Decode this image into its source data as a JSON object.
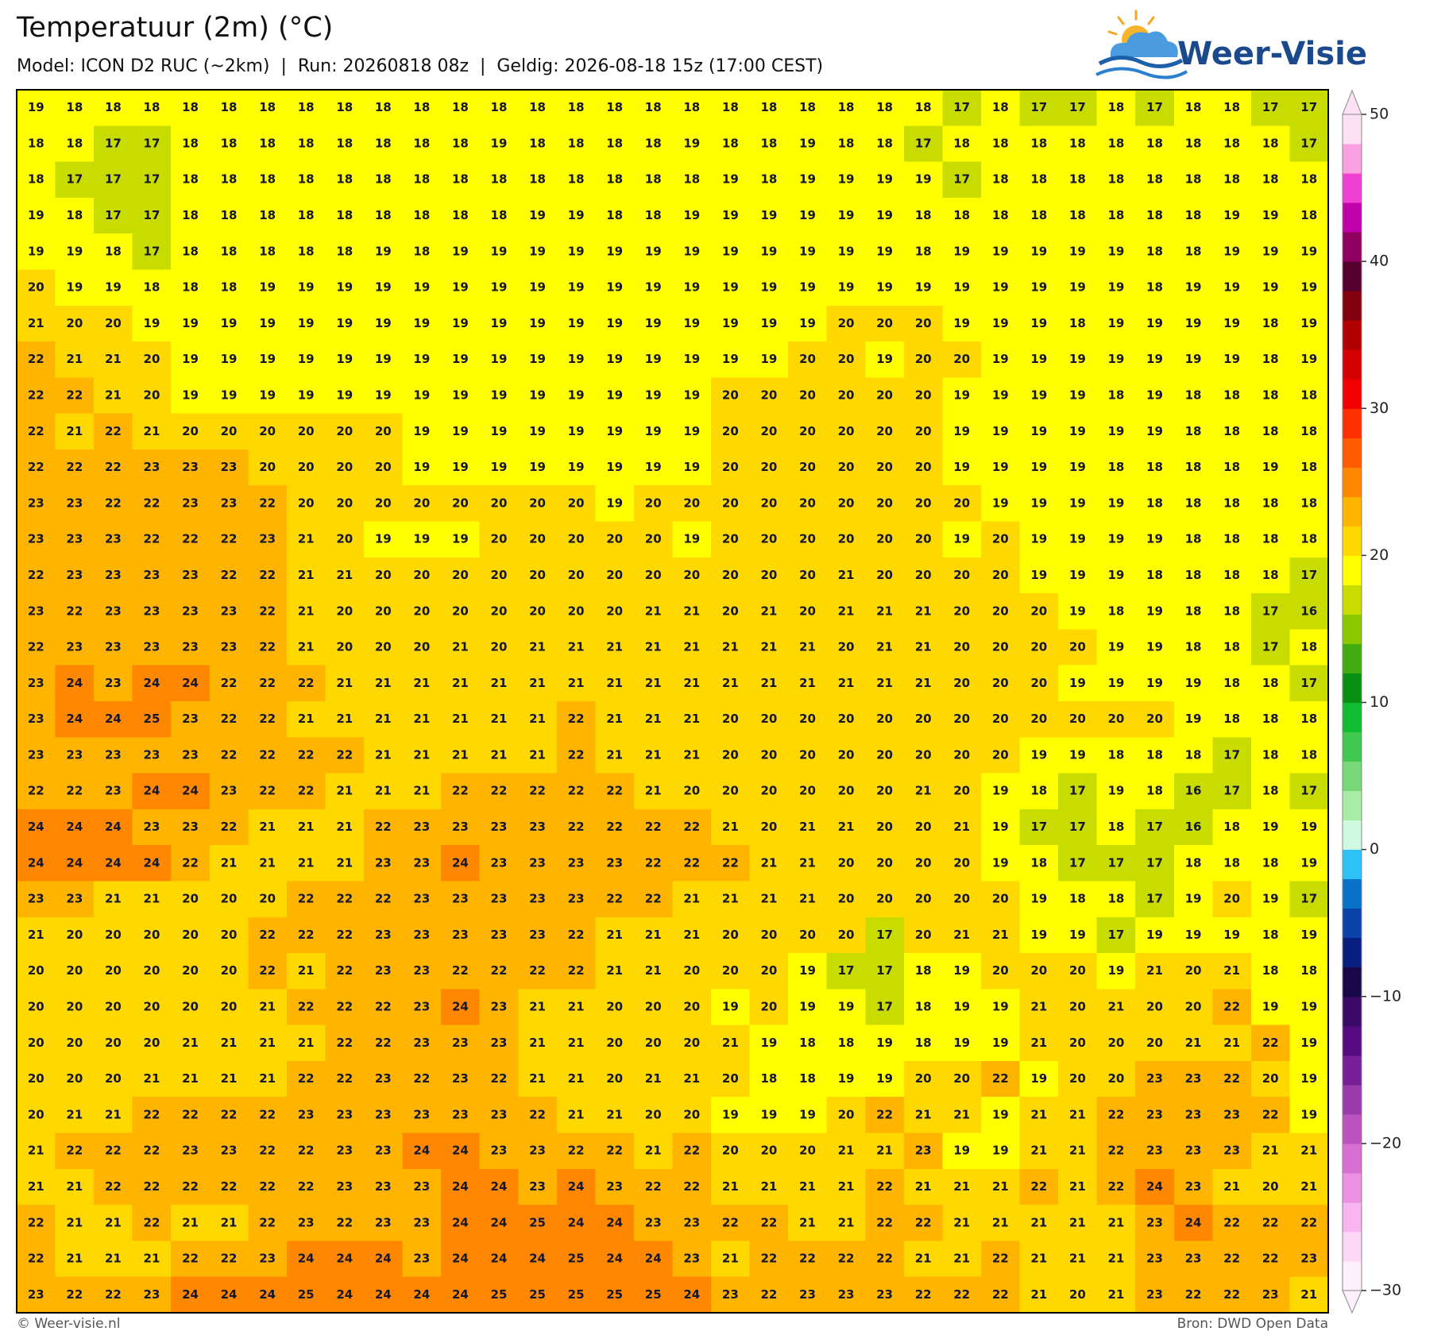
{
  "header": {
    "title": "Temperatuur (2m) (°C)",
    "subtitle": "Model: ICON D2 RUC (~2km)  |  Run: 20260818 08z  |  Geldig: 2026-08-18 15z (17:00 CEST)"
  },
  "logo": {
    "text": "Weer-Visie"
  },
  "map": {
    "grid": [
      [
        19,
        18,
        18,
        18,
        18,
        18,
        18,
        18,
        18,
        18,
        18,
        18,
        18,
        18,
        18,
        18,
        18,
        18,
        18,
        18,
        18,
        18,
        18,
        18,
        17,
        18,
        17,
        17,
        18,
        17,
        18,
        18,
        17,
        17
      ],
      [
        18,
        18,
        17,
        17,
        18,
        18,
        18,
        18,
        18,
        18,
        18,
        18,
        19,
        18,
        18,
        18,
        18,
        19,
        18,
        18,
        19,
        18,
        18,
        17,
        18,
        18,
        18,
        18,
        18,
        18,
        18,
        18,
        18,
        17
      ],
      [
        18,
        17,
        17,
        17,
        18,
        18,
        18,
        18,
        18,
        18,
        18,
        18,
        18,
        18,
        18,
        18,
        18,
        18,
        19,
        18,
        19,
        19,
        19,
        19,
        17,
        18,
        18,
        18,
        18,
        18,
        18,
        18,
        18,
        18
      ],
      [
        19,
        18,
        17,
        17,
        18,
        18,
        18,
        18,
        18,
        18,
        18,
        18,
        18,
        19,
        19,
        18,
        18,
        19,
        19,
        19,
        19,
        19,
        19,
        18,
        18,
        18,
        18,
        18,
        18,
        18,
        18,
        19,
        19,
        18
      ],
      [
        19,
        19,
        18,
        17,
        18,
        18,
        18,
        18,
        18,
        19,
        18,
        19,
        19,
        19,
        19,
        19,
        19,
        19,
        19,
        19,
        19,
        19,
        19,
        18,
        19,
        19,
        19,
        19,
        19,
        18,
        18,
        19,
        19,
        19
      ],
      [
        20,
        19,
        19,
        18,
        18,
        18,
        19,
        19,
        19,
        19,
        19,
        19,
        19,
        19,
        19,
        19,
        19,
        19,
        19,
        19,
        19,
        19,
        19,
        19,
        19,
        19,
        19,
        19,
        19,
        18,
        19,
        19,
        19,
        19
      ],
      [
        21,
        20,
        20,
        19,
        19,
        19,
        19,
        19,
        19,
        19,
        19,
        19,
        19,
        19,
        19,
        19,
        19,
        19,
        19,
        19,
        19,
        20,
        20,
        20,
        19,
        19,
        19,
        18,
        19,
        19,
        19,
        19,
        18,
        19
      ],
      [
        22,
        21,
        21,
        20,
        19,
        19,
        19,
        19,
        19,
        19,
        19,
        19,
        19,
        19,
        19,
        19,
        19,
        19,
        19,
        19,
        20,
        20,
        19,
        20,
        20,
        19,
        19,
        19,
        19,
        19,
        19,
        19,
        18,
        19
      ],
      [
        22,
        22,
        21,
        20,
        19,
        19,
        19,
        19,
        19,
        19,
        19,
        19,
        19,
        19,
        19,
        19,
        19,
        19,
        20,
        20,
        20,
        20,
        20,
        20,
        19,
        19,
        19,
        19,
        18,
        19,
        18,
        18,
        18,
        18
      ],
      [
        22,
        21,
        22,
        21,
        20,
        20,
        20,
        20,
        20,
        20,
        19,
        19,
        19,
        19,
        19,
        19,
        19,
        19,
        20,
        20,
        20,
        20,
        20,
        20,
        19,
        19,
        19,
        19,
        19,
        19,
        18,
        18,
        18,
        18
      ],
      [
        22,
        22,
        22,
        23,
        23,
        23,
        20,
        20,
        20,
        20,
        19,
        19,
        19,
        19,
        19,
        19,
        19,
        19,
        20,
        20,
        20,
        20,
        20,
        20,
        19,
        19,
        19,
        19,
        18,
        18,
        18,
        18,
        19,
        18
      ],
      [
        23,
        23,
        22,
        22,
        23,
        23,
        22,
        20,
        20,
        20,
        20,
        20,
        20,
        20,
        20,
        19,
        20,
        20,
        20,
        20,
        20,
        20,
        20,
        20,
        20,
        19,
        19,
        19,
        19,
        18,
        18,
        18,
        18,
        18
      ],
      [
        23,
        23,
        23,
        22,
        22,
        22,
        23,
        21,
        20,
        19,
        19,
        19,
        20,
        20,
        20,
        20,
        20,
        19,
        20,
        20,
        20,
        20,
        20,
        20,
        19,
        20,
        19,
        19,
        19,
        19,
        18,
        18,
        18,
        18
      ],
      [
        22,
        23,
        23,
        23,
        23,
        22,
        22,
        21,
        21,
        20,
        20,
        20,
        20,
        20,
        20,
        20,
        20,
        20,
        20,
        20,
        20,
        21,
        20,
        20,
        20,
        20,
        19,
        19,
        19,
        18,
        18,
        18,
        18,
        17
      ],
      [
        23,
        22,
        23,
        23,
        23,
        23,
        22,
        21,
        20,
        20,
        20,
        20,
        20,
        20,
        20,
        20,
        21,
        21,
        20,
        21,
        20,
        21,
        21,
        21,
        20,
        20,
        20,
        19,
        18,
        19,
        18,
        18,
        17,
        16
      ],
      [
        22,
        23,
        23,
        23,
        23,
        23,
        22,
        21,
        20,
        20,
        20,
        21,
        20,
        21,
        21,
        21,
        21,
        21,
        21,
        21,
        21,
        20,
        21,
        21,
        20,
        20,
        20,
        20,
        19,
        19,
        18,
        18,
        17,
        18
      ],
      [
        23,
        24,
        23,
        24,
        24,
        22,
        22,
        22,
        21,
        21,
        21,
        21,
        21,
        21,
        21,
        21,
        21,
        21,
        21,
        21,
        21,
        21,
        21,
        21,
        20,
        20,
        20,
        19,
        19,
        19,
        19,
        18,
        18,
        17
      ],
      [
        23,
        24,
        24,
        25,
        23,
        22,
        22,
        21,
        21,
        21,
        21,
        21,
        21,
        21,
        22,
        21,
        21,
        21,
        20,
        20,
        20,
        20,
        20,
        20,
        20,
        20,
        20,
        20,
        20,
        20,
        19,
        18,
        18,
        18
      ],
      [
        23,
        23,
        23,
        23,
        23,
        22,
        22,
        22,
        22,
        21,
        21,
        21,
        21,
        21,
        22,
        21,
        21,
        21,
        20,
        20,
        20,
        20,
        20,
        20,
        20,
        20,
        19,
        19,
        18,
        18,
        18,
        17,
        18,
        18
      ],
      [
        22,
        22,
        23,
        24,
        24,
        23,
        22,
        22,
        21,
        21,
        21,
        22,
        22,
        22,
        22,
        22,
        21,
        20,
        20,
        20,
        20,
        20,
        20,
        21,
        20,
        19,
        18,
        17,
        19,
        18,
        16,
        17,
        18,
        17
      ],
      [
        24,
        24,
        24,
        23,
        23,
        22,
        21,
        21,
        21,
        22,
        23,
        23,
        23,
        23,
        22,
        22,
        22,
        22,
        21,
        20,
        21,
        21,
        20,
        20,
        21,
        19,
        17,
        17,
        18,
        17,
        16,
        18,
        19,
        19
      ],
      [
        24,
        24,
        24,
        24,
        22,
        21,
        21,
        21,
        21,
        23,
        23,
        24,
        23,
        23,
        23,
        23,
        22,
        22,
        22,
        21,
        21,
        20,
        20,
        20,
        20,
        19,
        18,
        17,
        17,
        17,
        18,
        18,
        18,
        19
      ],
      [
        23,
        23,
        21,
        21,
        20,
        20,
        20,
        22,
        22,
        22,
        23,
        23,
        23,
        23,
        23,
        22,
        22,
        21,
        21,
        21,
        21,
        20,
        20,
        20,
        20,
        20,
        19,
        18,
        18,
        17,
        19,
        20,
        19,
        17
      ],
      [
        21,
        20,
        20,
        20,
        20,
        20,
        22,
        22,
        22,
        23,
        23,
        23,
        23,
        23,
        22,
        21,
        21,
        21,
        20,
        20,
        20,
        20,
        17,
        20,
        21,
        21,
        19,
        19,
        17,
        19,
        19,
        19,
        18,
        19
      ],
      [
        20,
        20,
        20,
        20,
        20,
        20,
        22,
        21,
        22,
        23,
        23,
        22,
        22,
        22,
        22,
        21,
        21,
        20,
        20,
        20,
        19,
        17,
        17,
        18,
        19,
        20,
        20,
        20,
        19,
        21,
        20,
        21,
        18,
        18
      ],
      [
        20,
        20,
        20,
        20,
        20,
        20,
        21,
        22,
        22,
        22,
        23,
        24,
        23,
        21,
        21,
        20,
        20,
        20,
        19,
        20,
        19,
        19,
        17,
        18,
        19,
        19,
        21,
        20,
        21,
        20,
        20,
        22,
        19,
        19
      ],
      [
        20,
        20,
        20,
        20,
        21,
        21,
        21,
        21,
        22,
        22,
        23,
        23,
        23,
        21,
        21,
        20,
        20,
        20,
        21,
        19,
        18,
        18,
        19,
        18,
        19,
        19,
        21,
        20,
        20,
        20,
        21,
        21,
        22,
        19
      ],
      [
        20,
        20,
        20,
        21,
        21,
        21,
        21,
        22,
        22,
        23,
        22,
        23,
        22,
        21,
        21,
        20,
        21,
        21,
        20,
        18,
        18,
        19,
        19,
        20,
        20,
        22,
        19,
        20,
        20,
        23,
        23,
        22,
        20,
        19
      ],
      [
        20,
        21,
        21,
        22,
        22,
        22,
        22,
        23,
        23,
        23,
        23,
        23,
        23,
        22,
        21,
        21,
        20,
        20,
        19,
        19,
        19,
        20,
        22,
        21,
        21,
        19,
        21,
        21,
        22,
        23,
        23,
        23,
        22,
        19
      ],
      [
        21,
        22,
        22,
        22,
        23,
        23,
        22,
        22,
        23,
        23,
        24,
        24,
        23,
        23,
        22,
        22,
        21,
        22,
        20,
        20,
        20,
        21,
        21,
        23,
        19,
        19,
        21,
        21,
        22,
        23,
        23,
        23,
        21,
        21
      ],
      [
        21,
        21,
        22,
        22,
        22,
        22,
        22,
        22,
        23,
        23,
        23,
        24,
        24,
        23,
        24,
        23,
        22,
        22,
        21,
        21,
        21,
        21,
        22,
        21,
        21,
        21,
        22,
        21,
        22,
        24,
        23,
        21,
        20,
        21
      ],
      [
        22,
        21,
        21,
        22,
        21,
        21,
        22,
        23,
        22,
        23,
        23,
        24,
        24,
        25,
        24,
        24,
        23,
        23,
        22,
        22,
        21,
        21,
        22,
        22,
        21,
        21,
        21,
        21,
        21,
        23,
        24,
        22,
        22,
        22
      ],
      [
        22,
        21,
        21,
        21,
        22,
        22,
        23,
        24,
        24,
        24,
        23,
        24,
        24,
        24,
        25,
        24,
        24,
        23,
        21,
        22,
        22,
        22,
        22,
        21,
        21,
        22,
        21,
        21,
        21,
        23,
        23,
        22,
        22,
        23
      ],
      [
        23,
        22,
        22,
        23,
        24,
        24,
        24,
        25,
        24,
        24,
        24,
        24,
        25,
        25,
        25,
        25,
        25,
        24,
        23,
        22,
        23,
        23,
        23,
        22,
        22,
        22,
        21,
        20,
        21,
        23,
        22,
        22,
        23,
        21
      ]
    ]
  },
  "colorbar": {
    "lim": [
      -30,
      50
    ],
    "ticks": [
      50,
      40,
      30,
      20,
      10,
      0,
      {
        "value": -10,
        "label": "−10"
      },
      {
        "value": -20,
        "label": "−20"
      },
      {
        "value": -30,
        "label": "−30"
      }
    ],
    "colors": [
      "#fdf0fc",
      "#fcd8f6",
      "#f8b4ee",
      "#ec90e2",
      "#d870d4",
      "#bc54c0",
      "#9a3cac",
      "#781e96",
      "#560a82",
      "#3a0a66",
      "#180848",
      "#0a2080",
      "#0a44a8",
      "#0a72c8",
      "#2cc2f6",
      "#d0fae0",
      "#a8eca8",
      "#78d878",
      "#40c850",
      "#10bc30",
      "#0a9010",
      "#40ac10",
      "#8cc800",
      "#c8dc00",
      "#ffff00",
      "#ffd800",
      "#ffb400",
      "#ff8800",
      "#ff5c00",
      "#ff3000",
      "#f00000",
      "#d40000",
      "#b00000",
      "#820010",
      "#560030",
      "#900060",
      "#c000a8",
      "#f040d4",
      "#f8a0e0",
      "#fde0f4"
    ]
  },
  "footer": {
    "left": "© Weer-visie.nl",
    "right": "Bron: DWD Open Data"
  }
}
